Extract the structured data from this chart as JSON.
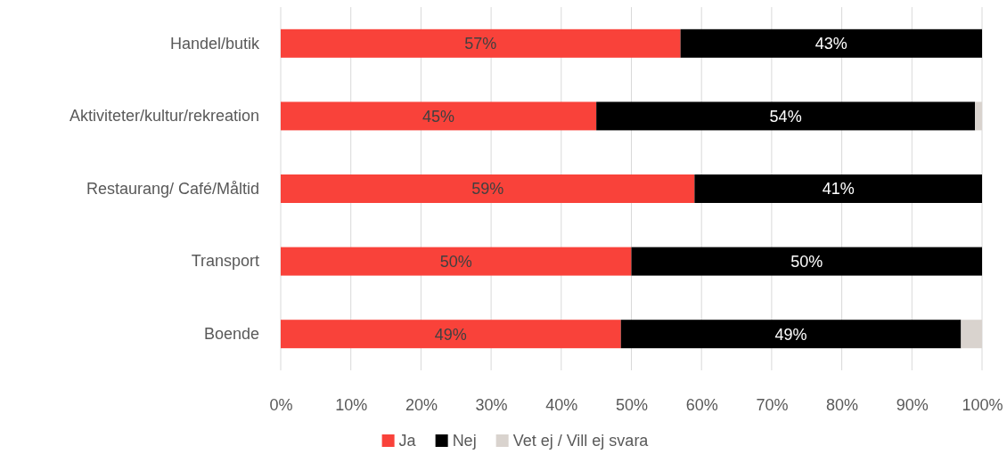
{
  "chart_data": {
    "type": "bar",
    "orientation": "horizontal",
    "stacked": true,
    "categories": [
      "Handel/butik",
      "Aktiviteter/kultur/rekreation",
      "Restaurang/ Café/Måltid",
      "Transport",
      "Boende"
    ],
    "series": [
      {
        "name": "Ja",
        "color": "#f9423a",
        "values": [
          57,
          45,
          59,
          50,
          48.5
        ],
        "value_labels": [
          "57%",
          "45%",
          "59%",
          "50%",
          "49%"
        ]
      },
      {
        "name": "Nej",
        "color": "#000000",
        "values": [
          43,
          54,
          41,
          50,
          48.5
        ],
        "value_labels": [
          "43%",
          "54%",
          "41%",
          "50%",
          "49%"
        ]
      },
      {
        "name": "Vet ej / Vill ej svara",
        "color": "#d9d3ce",
        "values": [
          null,
          1,
          null,
          null,
          3
        ]
      }
    ],
    "xlim": [
      0,
      100
    ],
    "xticks": [
      {
        "value": 0,
        "label": "0%"
      },
      {
        "value": 10,
        "label": "10%"
      },
      {
        "value": 20,
        "label": "20%"
      },
      {
        "value": 30,
        "label": "30%"
      },
      {
        "value": 40,
        "label": "40%"
      },
      {
        "value": 50,
        "label": "50%"
      },
      {
        "value": 60,
        "label": "60%"
      },
      {
        "value": 70,
        "label": "70%"
      },
      {
        "value": 80,
        "label": "80%"
      },
      {
        "value": 90,
        "label": "90%"
      },
      {
        "value": 100,
        "label": "100%"
      }
    ],
    "grid": "x",
    "legend": "bottom"
  }
}
